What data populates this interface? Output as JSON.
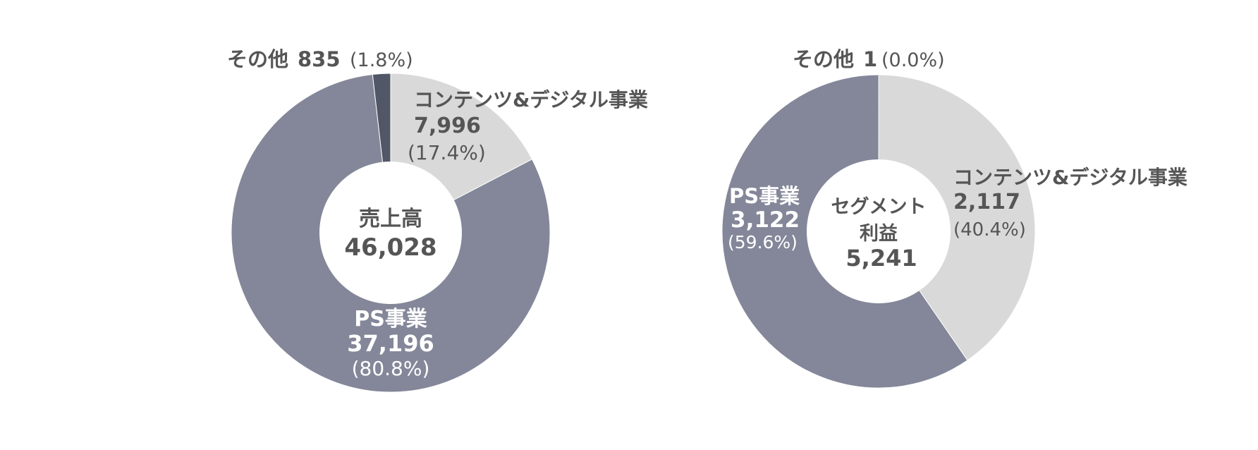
{
  "colors": {
    "ps": "#848799",
    "contents": "#d9d9d9",
    "other": "#515767",
    "text_dark": "#555555",
    "text_light": "#ffffff",
    "background": "#ffffff"
  },
  "chart_data": [
    {
      "type": "pie",
      "donut": true,
      "center_label": {
        "title": "売上高",
        "value": "46,028"
      },
      "slices": [
        {
          "name": "コンテンツ&デジタル事業",
          "value": 7996,
          "value_label": "7,996",
          "percent_label": "(17.4%)",
          "color": "#d9d9d9"
        },
        {
          "name": "PS事業",
          "value": 37196,
          "value_label": "37,196",
          "percent_label": "(80.8%)",
          "color": "#848799"
        },
        {
          "name": "その他",
          "value": 835,
          "value_label": "835",
          "percent_label": "(1.8%)",
          "color": "#515767"
        }
      ]
    },
    {
      "type": "pie",
      "donut": true,
      "center_label": {
        "title_line1": "セグメント",
        "title_line2": "利益",
        "value": "5,241"
      },
      "slices": [
        {
          "name": "コンテンツ&デジタル事業",
          "value": 2117,
          "value_label": "2,117",
          "percent_label": "(40.4%)",
          "color": "#d9d9d9"
        },
        {
          "name": "PS事業",
          "value": 3122,
          "value_label": "3,122",
          "percent_label": "(59.6%)",
          "color": "#848799"
        },
        {
          "name": "その他",
          "value": 1,
          "value_label": "1",
          "percent_label": "(0.0%)",
          "color": "#515767"
        }
      ]
    }
  ]
}
